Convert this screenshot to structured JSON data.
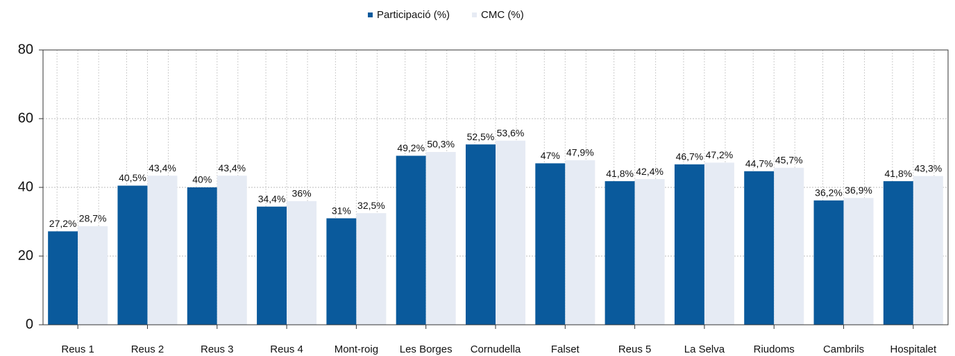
{
  "chart_data": {
    "type": "bar",
    "categories": [
      "Reus 1",
      "Reus 2",
      "Reus 3",
      "Reus 4",
      "Mont-roig",
      "Les Borges",
      "Cornudella",
      "Falset",
      "Reus 5",
      "La Selva",
      "Riudoms",
      "Cambrils",
      "Hospitalet"
    ],
    "series": [
      {
        "name": "Participació (%)",
        "color": "#0a5a9c",
        "values": [
          27.2,
          40.5,
          40,
          34.4,
          31,
          49.2,
          52.5,
          47,
          41.8,
          46.7,
          44.7,
          36.2,
          41.8
        ],
        "value_labels": [
          "27,2%",
          "40,5%",
          "40%",
          "34,4%",
          "31%",
          "49,2%",
          "52,5%",
          "47%",
          "41,8%",
          "46,7%",
          "44,7%",
          "36,2%",
          "41,8%"
        ]
      },
      {
        "name": "CMC (%)",
        "color": "#e6ebf4",
        "values": [
          28.7,
          43.4,
          43.4,
          36,
          32.5,
          50.3,
          53.6,
          47.9,
          42.4,
          47.2,
          45.7,
          36.9,
          43.3
        ],
        "value_labels": [
          "28,7%",
          "43,4%",
          "43,4%",
          "36%",
          "32,5%",
          "50,3%",
          "53,6%",
          "47,9%",
          "42,4%",
          "47,2%",
          "45,7%",
          "36,9%",
          "43,3%"
        ]
      }
    ],
    "ylim": [
      0,
      80
    ],
    "yticks": [
      0,
      20,
      40,
      60,
      80
    ],
    "grid": true,
    "legend": "top"
  }
}
